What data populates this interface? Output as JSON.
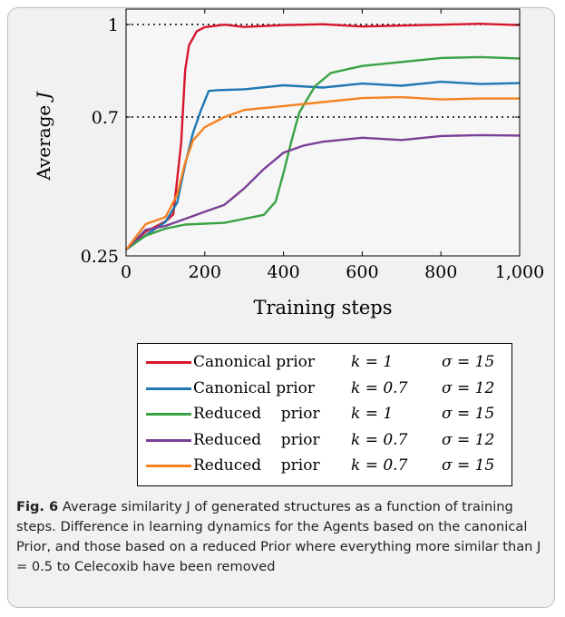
{
  "chart_data": {
    "type": "line",
    "title": "",
    "xlabel": "Training steps",
    "ylabel": "Average J",
    "xlim": [
      0,
      1000
    ],
    "ylim": [
      0.25,
      1.05
    ],
    "xticks": [
      "0",
      "200",
      "400",
      "600",
      "800",
      "1,000"
    ],
    "yticks": [
      "0.25",
      "0.7",
      "1"
    ],
    "reference_lines": [
      0.7,
      1.0
    ],
    "grid": false,
    "legend_position": "below",
    "series": [
      {
        "name": "Canonical prior",
        "k": "k = 1",
        "sigma": "σ = 15",
        "color": "#d7162b",
        "x": [
          0,
          50,
          100,
          120,
          140,
          150,
          160,
          170,
          180,
          200,
          250,
          300,
          400,
          500,
          600,
          700,
          800,
          900,
          1000
        ],
        "y": [
          0.27,
          0.33,
          0.36,
          0.38,
          0.62,
          0.85,
          0.93,
          0.96,
          0.98,
          0.99,
          0.995,
          0.995,
          0.998,
          0.998,
          0.998,
          0.998,
          0.998,
          0.998,
          0.998
        ]
      },
      {
        "name": "Canonical prior",
        "k": "k = 0.7",
        "sigma": "σ = 12",
        "color": "#1f77b4",
        "x": [
          0,
          50,
          100,
          130,
          150,
          170,
          190,
          210,
          230,
          300,
          400,
          500,
          600,
          700,
          800,
          900,
          1000
        ],
        "y": [
          0.27,
          0.32,
          0.36,
          0.42,
          0.55,
          0.65,
          0.72,
          0.78,
          0.79,
          0.79,
          0.8,
          0.8,
          0.81,
          0.8,
          0.81,
          0.81,
          0.81
        ]
      },
      {
        "name": "Reduced prior",
        "k": "k = 1",
        "sigma": "σ = 15",
        "color": "#3aa244",
        "x": [
          0,
          50,
          100,
          150,
          200,
          250,
          300,
          350,
          380,
          400,
          420,
          440,
          460,
          480,
          520,
          600,
          700,
          800,
          900,
          1000
        ],
        "y": [
          0.27,
          0.32,
          0.34,
          0.35,
          0.35,
          0.36,
          0.37,
          0.38,
          0.43,
          0.52,
          0.62,
          0.71,
          0.76,
          0.8,
          0.84,
          0.87,
          0.88,
          0.89,
          0.89,
          0.89
        ]
      },
      {
        "name": "Reduced prior",
        "k": "k = 0.7",
        "sigma": "σ = 12",
        "color": "#7b3f95",
        "x": [
          0,
          50,
          100,
          150,
          200,
          250,
          300,
          350,
          400,
          450,
          500,
          600,
          700,
          800,
          900,
          1000
        ],
        "y": [
          0.27,
          0.33,
          0.35,
          0.37,
          0.39,
          0.42,
          0.47,
          0.53,
          0.58,
          0.61,
          0.62,
          0.63,
          0.63,
          0.64,
          0.64,
          0.64
        ]
      },
      {
        "name": "Reduced prior",
        "k": "k = 0.7",
        "sigma": "σ = 15",
        "color": "#f58220",
        "x": [
          0,
          50,
          100,
          130,
          150,
          170,
          200,
          250,
          300,
          400,
          500,
          600,
          700,
          800,
          900,
          1000
        ],
        "y": [
          0.27,
          0.35,
          0.38,
          0.45,
          0.55,
          0.62,
          0.67,
          0.7,
          0.72,
          0.74,
          0.75,
          0.76,
          0.76,
          0.76,
          0.76,
          0.76
        ]
      }
    ]
  },
  "legend": {
    "rows": [
      {
        "name": "Canonical prior",
        "k": "k = 1",
        "sigma": "σ = 15",
        "color": "#d7162b"
      },
      {
        "name": "Canonical prior",
        "k": "k = 0.7",
        "sigma": "σ = 12",
        "color": "#1f77b4"
      },
      {
        "name": "Reduced    prior",
        "k": "k = 1",
        "sigma": "σ = 15",
        "color": "#3aa244"
      },
      {
        "name": "Reduced    prior",
        "k": "k = 0.7",
        "sigma": "σ = 12",
        "color": "#7b3f95"
      },
      {
        "name": "Reduced    prior",
        "k": "k = 0.7",
        "sigma": "σ = 15",
        "color": "#f58220"
      }
    ]
  },
  "caption": {
    "figno": "Fig. 6",
    "text": "Average similarity J of generated structures as a function of training steps. Difference in learning dynamics for the Agents based on the canonical Prior, and those based on a reduced Prior where everything more similar than J = 0.5 to Celecoxib have been removed"
  }
}
